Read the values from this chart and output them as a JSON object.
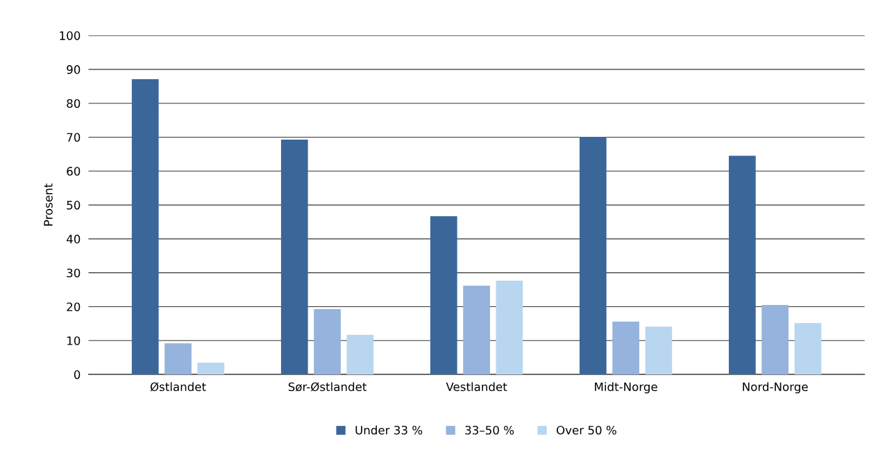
{
  "chart_data": {
    "type": "bar",
    "ylabel": "Prosent",
    "categories": [
      "Østlandet",
      "Sør-Østlandet",
      "Vestlandet",
      "Midt-Norge",
      "Nord-Norge"
    ],
    "series": [
      {
        "name": "Under 33 %",
        "color": "#3b6699",
        "values": [
          87.1,
          69.3,
          46.7,
          70.1,
          64.5
        ]
      },
      {
        "name": "33–50 %",
        "color": "#95b3dc",
        "values": [
          9.2,
          19.3,
          26.2,
          15.6,
          20.5
        ]
      },
      {
        "name": "Over 50 %",
        "color": "#b9d6f0",
        "values": [
          3.5,
          11.7,
          27.7,
          14.1,
          15.2
        ]
      }
    ],
    "ylim": [
      0,
      100
    ],
    "yticks": [
      0,
      10,
      20,
      30,
      40,
      50,
      60,
      70,
      80,
      90,
      100
    ],
    "grid": "y",
    "legend": "bottom"
  }
}
